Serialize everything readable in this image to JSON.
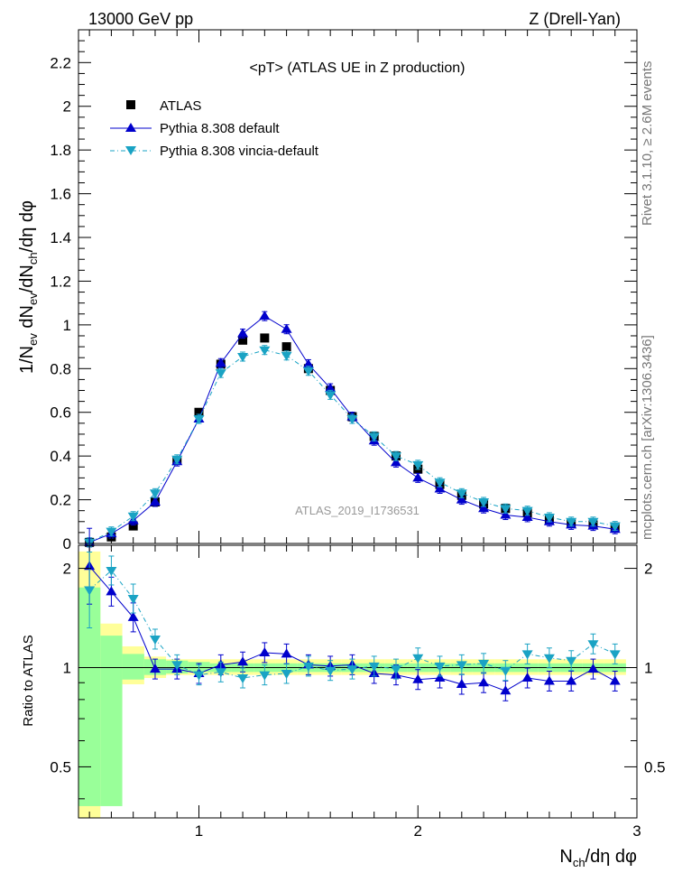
{
  "header": {
    "left": "13000 GeV pp",
    "right": "Z (Drell-Yan)"
  },
  "side_labels": {
    "rivet": "Rivet 3.1.10, ≥ 2.6M events",
    "mcplots": "mcplots.cern.ch [arXiv:1306.3436]"
  },
  "colors": {
    "atlas": "#000000",
    "pythia_default": "#0000cc",
    "pythia_vincia": "#1aa3c4",
    "band_inner": "#99ff99",
    "band_outer": "#ffff99"
  },
  "chart_data": [
    {
      "type": "scatter",
      "title": "<pT> (ATLAS UE in Z production)",
      "analysis_tag": "ATLAS_2019_I1736531",
      "ylabel": "1/N_ev dN_ev/dN_ch/dη dφ",
      "xlim": [
        0.45,
        3.0
      ],
      "ylim": [
        0,
        2.35
      ],
      "yticks": [
        "0",
        "0.2",
        "0.4",
        "0.6",
        "0.8",
        "1",
        "1.2",
        "1.4",
        "1.6",
        "1.8",
        "2",
        "2.2"
      ],
      "legend_position": "top-left",
      "x": [
        0.5,
        0.6,
        0.7,
        0.8,
        0.9,
        1.0,
        1.1,
        1.2,
        1.3,
        1.4,
        1.5,
        1.6,
        1.7,
        1.8,
        1.9,
        2.0,
        2.1,
        2.2,
        2.3,
        2.4,
        2.5,
        2.6,
        2.7,
        2.8,
        2.9
      ],
      "series": [
        {
          "name": "ATLAS",
          "marker": "square",
          "values": [
            0.005,
            0.03,
            0.08,
            0.19,
            0.38,
            0.6,
            0.82,
            0.93,
            0.94,
            0.9,
            0.8,
            0.7,
            0.58,
            0.49,
            0.4,
            0.34,
            0.27,
            0.22,
            0.18,
            0.16,
            0.14,
            0.11,
            0.095,
            0.085,
            0.075
          ]
        },
        {
          "name": "Pythia 8.308 default",
          "marker": "triangle-up",
          "values": [
            0.005,
            0.045,
            0.105,
            0.19,
            0.375,
            0.57,
            0.825,
            0.96,
            1.04,
            0.98,
            0.82,
            0.71,
            0.58,
            0.47,
            0.37,
            0.3,
            0.25,
            0.2,
            0.16,
            0.13,
            0.12,
            0.1,
            0.085,
            0.08,
            0.065
          ]
        },
        {
          "name": "Pythia 8.308 vincia-default",
          "marker": "triangle-down",
          "values": [
            0.005,
            0.055,
            0.125,
            0.23,
            0.385,
            0.57,
            0.78,
            0.855,
            0.885,
            0.86,
            0.79,
            0.68,
            0.57,
            0.49,
            0.4,
            0.36,
            0.28,
            0.23,
            0.19,
            0.16,
            0.15,
            0.12,
            0.1,
            0.1,
            0.08
          ]
        }
      ]
    },
    {
      "type": "scatter",
      "ylabel": "Ratio to ATLAS",
      "xlabel": "N_ch/dη dφ",
      "xlim": [
        0.45,
        3.0
      ],
      "ylim": [
        0.35,
        2.35
      ],
      "y_scale": "log",
      "yticks": [
        "0.5",
        "1",
        "2"
      ],
      "xticks": [
        "1",
        "2",
        "3"
      ],
      "x": [
        0.5,
        0.6,
        0.7,
        0.8,
        0.9,
        1.0,
        1.1,
        1.2,
        1.3,
        1.4,
        1.5,
        1.6,
        1.7,
        1.8,
        1.9,
        2.0,
        2.1,
        2.2,
        2.3,
        2.4,
        2.5,
        2.6,
        2.7,
        2.8,
        2.9
      ],
      "series": [
        {
          "name": "Pythia 8.308 default",
          "values": [
            2.03,
            1.7,
            1.42,
            0.99,
            0.99,
            0.96,
            1.02,
            1.04,
            1.11,
            1.1,
            1.02,
            1.01,
            1.02,
            0.96,
            0.95,
            0.92,
            0.93,
            0.89,
            0.9,
            0.85,
            0.93,
            0.91,
            0.91,
            0.99,
            0.91
          ]
        },
        {
          "name": "Pythia 8.308 vincia-default",
          "values": [
            1.72,
            1.97,
            1.62,
            1.22,
            1.02,
            0.95,
            0.97,
            0.93,
            0.95,
            0.96,
            1.01,
            0.98,
            0.99,
            1.01,
            0.99,
            1.07,
            1.01,
            1.02,
            1.03,
            0.98,
            1.1,
            1.07,
            1.05,
            1.18,
            1.1
          ]
        }
      ],
      "uncertainty_bands": {
        "inner": [
          [
            0.38,
            1.75
          ],
          [
            0.38,
            1.25
          ],
          [
            0.92,
            1.1
          ],
          [
            0.95,
            1.06
          ],
          [
            0.96,
            1.05
          ],
          [
            0.97,
            1.04
          ],
          [
            0.97,
            1.03
          ],
          [
            0.97,
            1.03
          ],
          [
            0.97,
            1.03
          ],
          [
            0.97,
            1.03
          ],
          [
            0.97,
            1.03
          ],
          [
            0.97,
            1.03
          ],
          [
            0.97,
            1.03
          ],
          [
            0.97,
            1.03
          ],
          [
            0.97,
            1.03
          ],
          [
            0.97,
            1.03
          ],
          [
            0.97,
            1.03
          ],
          [
            0.97,
            1.03
          ],
          [
            0.97,
            1.03
          ],
          [
            0.97,
            1.03
          ],
          [
            0.97,
            1.03
          ],
          [
            0.97,
            1.03
          ],
          [
            0.97,
            1.03
          ],
          [
            0.97,
            1.03
          ],
          [
            0.97,
            1.03
          ]
        ],
        "outer": [
          [
            0.35,
            2.25
          ],
          [
            0.76,
            1.36
          ],
          [
            0.89,
            1.16
          ],
          [
            0.93,
            1.08
          ],
          [
            0.95,
            1.06
          ],
          [
            0.95,
            1.06
          ],
          [
            0.95,
            1.06
          ],
          [
            0.95,
            1.06
          ],
          [
            0.95,
            1.06
          ],
          [
            0.95,
            1.06
          ],
          [
            0.95,
            1.06
          ],
          [
            0.95,
            1.06
          ],
          [
            0.95,
            1.06
          ],
          [
            0.95,
            1.06
          ],
          [
            0.95,
            1.06
          ],
          [
            0.95,
            1.06
          ],
          [
            0.95,
            1.06
          ],
          [
            0.95,
            1.06
          ],
          [
            0.95,
            1.06
          ],
          [
            0.95,
            1.06
          ],
          [
            0.95,
            1.06
          ],
          [
            0.95,
            1.06
          ],
          [
            0.95,
            1.06
          ],
          [
            0.95,
            1.06
          ],
          [
            0.95,
            1.06
          ]
        ]
      }
    }
  ]
}
